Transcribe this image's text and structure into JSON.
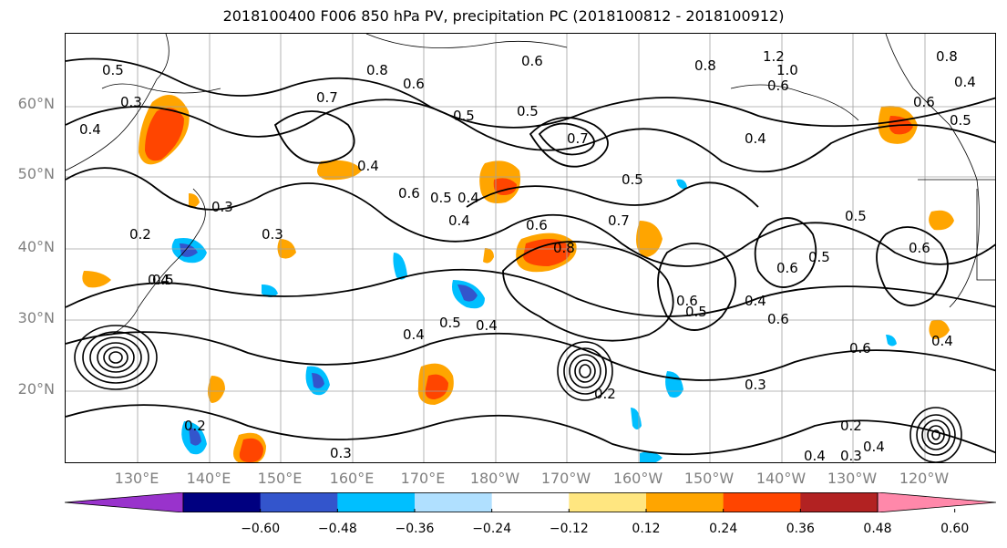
{
  "title": "2018100400 F006 850 hPa PV, precipitation PC (2018100812 - 2018100912)",
  "lat_labels": [
    "60°N",
    "50°N",
    "40°N",
    "30°N",
    "20°N"
  ],
  "lon_labels": [
    "130°E",
    "140°E",
    "150°E",
    "160°E",
    "170°E",
    "180°W",
    "170°W",
    "160°W",
    "150°W",
    "140°W",
    "130°W",
    "120°W"
  ],
  "colorbar": {
    "ticks": [
      "−0.60",
      "−0.48",
      "−0.36",
      "−0.24",
      "−0.12",
      "0.12",
      "0.24",
      "0.36",
      "0.48",
      "0.60"
    ],
    "colors": [
      "#9933cc",
      "#000080",
      "#3355cc",
      "#00bfff",
      "#b0e0ff",
      "#ffffff",
      "#ffe680",
      "#ffa500",
      "#ff4500",
      "#b22222",
      "#ff88aa"
    ]
  },
  "contour_labels": [
    "0.5",
    "0.4",
    "0.3",
    "0.4",
    "0.7",
    "0.8",
    "0.6",
    "0.5",
    "0.5",
    "0.7",
    "0.6",
    "0.8",
    "1.2",
    "1.0",
    "0.6",
    "0.8",
    "0.4",
    "0.4",
    "0.3",
    "0.2",
    "0.3",
    "0.4",
    "0.6",
    "0.5",
    "0.6",
    "0.7",
    "0.8",
    "0.4",
    "0.5",
    "0.6",
    "0.6",
    "0.5",
    "0.4",
    "0.6",
    "0.5",
    "0.5",
    "0.4",
    "0.4",
    "0.2",
    "0.3",
    "0.2",
    "0.4",
    "0.3",
    "0.4",
    "0.6",
    "0.4",
    "0.6",
    "0.4",
    "0.5",
    "0.5",
    "0.6",
    "0.5",
    "0.3",
    "0.2"
  ]
}
